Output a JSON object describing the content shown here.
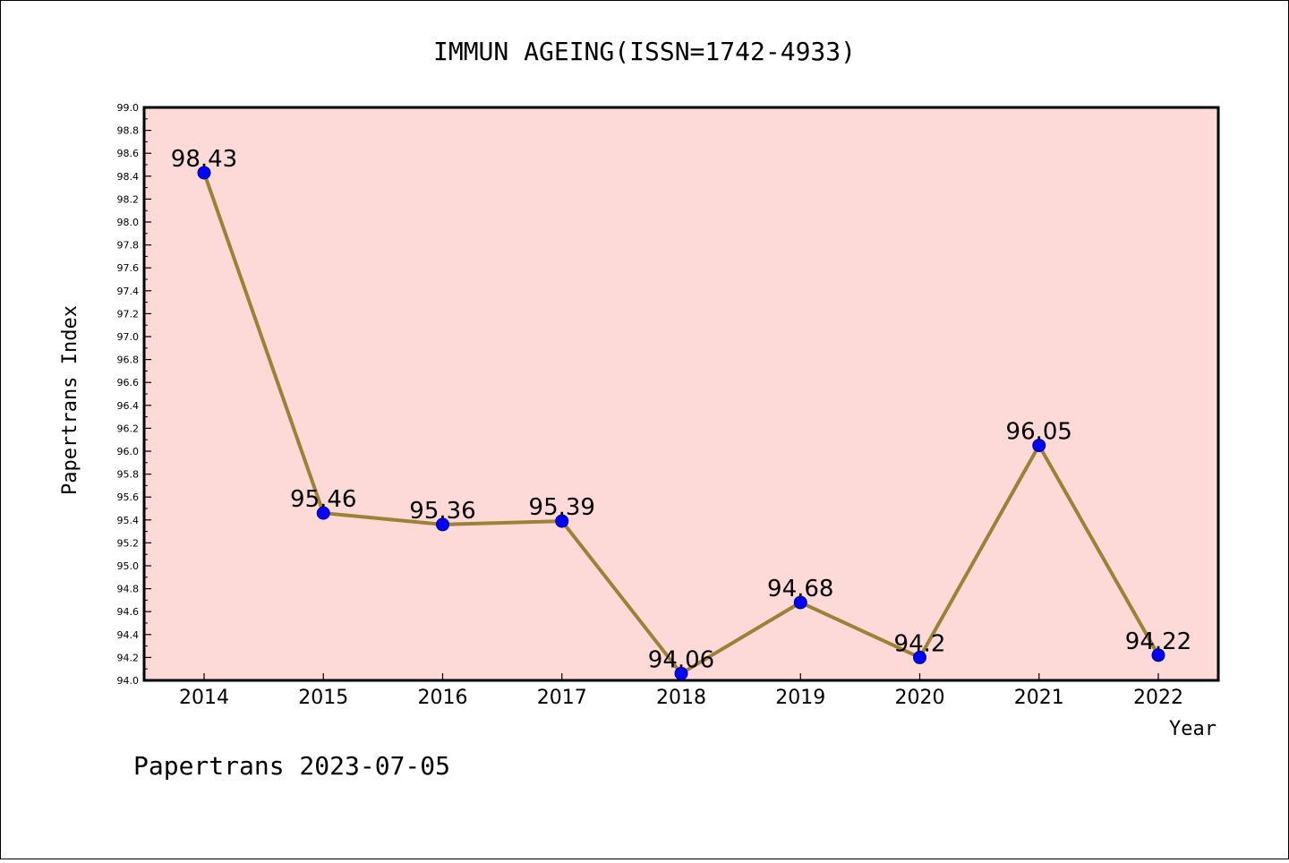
{
  "chart_data": {
    "type": "line",
    "title": "IMMUN AGEING(ISSN=1742-4933)",
    "xlabel": "Year",
    "ylabel": "Papertrans Index",
    "x": [
      "2014",
      "2015",
      "2016",
      "2017",
      "2018",
      "2019",
      "2020",
      "2021",
      "2022"
    ],
    "values": [
      98.43,
      95.46,
      95.36,
      95.39,
      94.06,
      94.68,
      94.2,
      96.05,
      94.22
    ],
    "data_labels": [
      "98.43",
      "95.46",
      "95.36",
      "95.39",
      "94.06",
      "94.68",
      "94.2",
      "96.05",
      "94.22"
    ],
    "ylim": [
      94.0,
      99.0
    ],
    "y_major_ticks": [
      "94.0",
      "94.2",
      "94.4",
      "94.6",
      "94.8",
      "95.0",
      "95.2",
      "95.4",
      "95.6",
      "95.8",
      "96.0",
      "96.2",
      "96.4",
      "96.6",
      "96.8",
      "97.0",
      "97.2",
      "97.4",
      "97.6",
      "97.8",
      "98.0",
      "98.2",
      "98.4",
      "98.6",
      "98.8",
      "99.0"
    ],
    "grid": false,
    "colors": {
      "plot_background": "#fdd9d7",
      "line": "#9b8236",
      "marker": "#0000ff",
      "marker_edge": "#00008b"
    }
  },
  "footer": {
    "text": "Papertrans 2023-07-05"
  }
}
